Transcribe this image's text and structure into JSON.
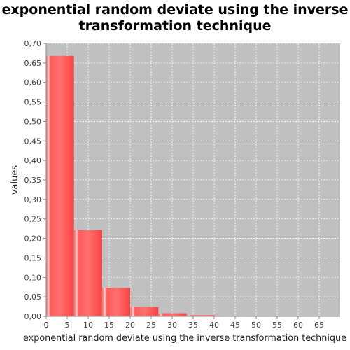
{
  "chart_data": {
    "type": "bar",
    "title_lines": [
      "exponential random deviate using the inverse",
      "transformation technique"
    ],
    "xlabel": "exponential random deviate using the inverse transformation technique",
    "ylabel": "values",
    "xlim": [
      0,
      70
    ],
    "ylim": [
      0,
      0.7
    ],
    "x_ticks": [
      "0",
      "5",
      "10",
      "15",
      "20",
      "25",
      "30",
      "35",
      "40",
      "45",
      "50",
      "55",
      "60",
      "65"
    ],
    "y_ticks": [
      "0,00",
      "0,05",
      "0,10",
      "0,15",
      "0,20",
      "0,25",
      "0,30",
      "0,35",
      "0,40",
      "0,45",
      "0,50",
      "0,55",
      "0,60",
      "0,65",
      "0,70"
    ],
    "grid": true,
    "bins": [
      {
        "start": 0,
        "end": 6.7,
        "value": 0.668
      },
      {
        "start": 6.7,
        "end": 13.4,
        "value": 0.221
      },
      {
        "start": 13.4,
        "end": 20.1,
        "value": 0.073
      },
      {
        "start": 20.1,
        "end": 26.8,
        "value": 0.024
      },
      {
        "start": 26.8,
        "end": 33.5,
        "value": 0.008
      },
      {
        "start": 33.5,
        "end": 40.2,
        "value": 0.003
      },
      {
        "start": 40.2,
        "end": 46.9,
        "value": 0.001
      },
      {
        "start": 46.9,
        "end": 53.6,
        "value": 0.0005
      }
    ],
    "colors": {
      "plot_bg": "#c0c0c0",
      "bar": "#ff5555",
      "bar_highlight": "#ffd6d6",
      "grid": "#ffffff"
    }
  }
}
